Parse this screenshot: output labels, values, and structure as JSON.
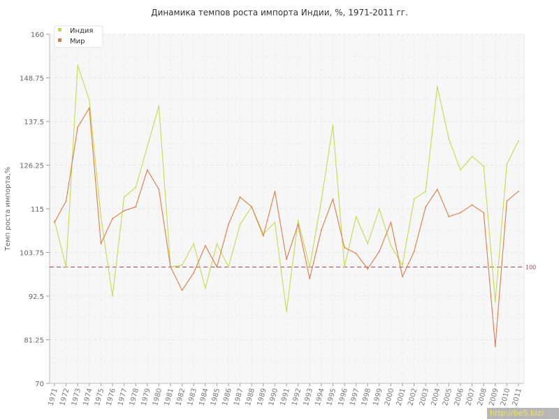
{
  "chart_data": {
    "type": "line",
    "title": "Динамика темпов роста импорта Индии, %, 1971-2011 гг.",
    "ylabel": "Темп роста импорта,%",
    "ylim": [
      70,
      160
    ],
    "yticks": [
      "70",
      "81.25",
      "92.5",
      "103.75",
      "115",
      "126.25",
      "137.5",
      "148.75",
      "160"
    ],
    "categories": [
      "1971",
      "1972",
      "1973",
      "1974",
      "1975",
      "1976",
      "1977",
      "1978",
      "1979",
      "1980",
      "1981",
      "1982",
      "1983",
      "1984",
      "1985",
      "1986",
      "1987",
      "1988",
      "1989",
      "1990",
      "1991",
      "1992",
      "1993",
      "1994",
      "1995",
      "1996",
      "1997",
      "1998",
      "1999",
      "2000",
      "2001",
      "2002",
      "2003",
      "2004",
      "2005",
      "2006",
      "2007",
      "2008",
      "2009",
      "2010",
      "2011"
    ],
    "series": [
      {
        "name": "Индия",
        "color": "#c5dc4a",
        "values": [
          112,
          100,
          152,
          143,
          113,
          92.5,
          118,
          120.5,
          131,
          141.5,
          100,
          100.5,
          106,
          94.5,
          106,
          100,
          111,
          115.5,
          108.5,
          111.5,
          88.5,
          112,
          100,
          117,
          136.5,
          100,
          113,
          106,
          115,
          105.5,
          100.5,
          117.5,
          119.5,
          146.5,
          133,
          125,
          128.5,
          126,
          91,
          126.5,
          132.5
        ]
      },
      {
        "name": "Мир",
        "color": "#e07a45",
        "values": [
          111.5,
          117,
          136,
          141,
          106,
          112.5,
          114.5,
          115.5,
          125,
          120,
          100,
          94,
          98.5,
          105.5,
          100,
          111,
          118,
          115.5,
          108,
          119.5,
          102,
          111,
          97,
          109.5,
          117.5,
          105,
          103.5,
          99.5,
          104,
          111.5,
          97.5,
          104,
          115.5,
          120,
          113,
          114,
          116,
          114,
          79.5,
          117,
          119.5
        ]
      }
    ],
    "reference_line": {
      "value": 100,
      "label": "100",
      "color": "#a04050"
    },
    "grid": true,
    "legend": "top-left"
  },
  "watermark": "http://be5.biz/"
}
